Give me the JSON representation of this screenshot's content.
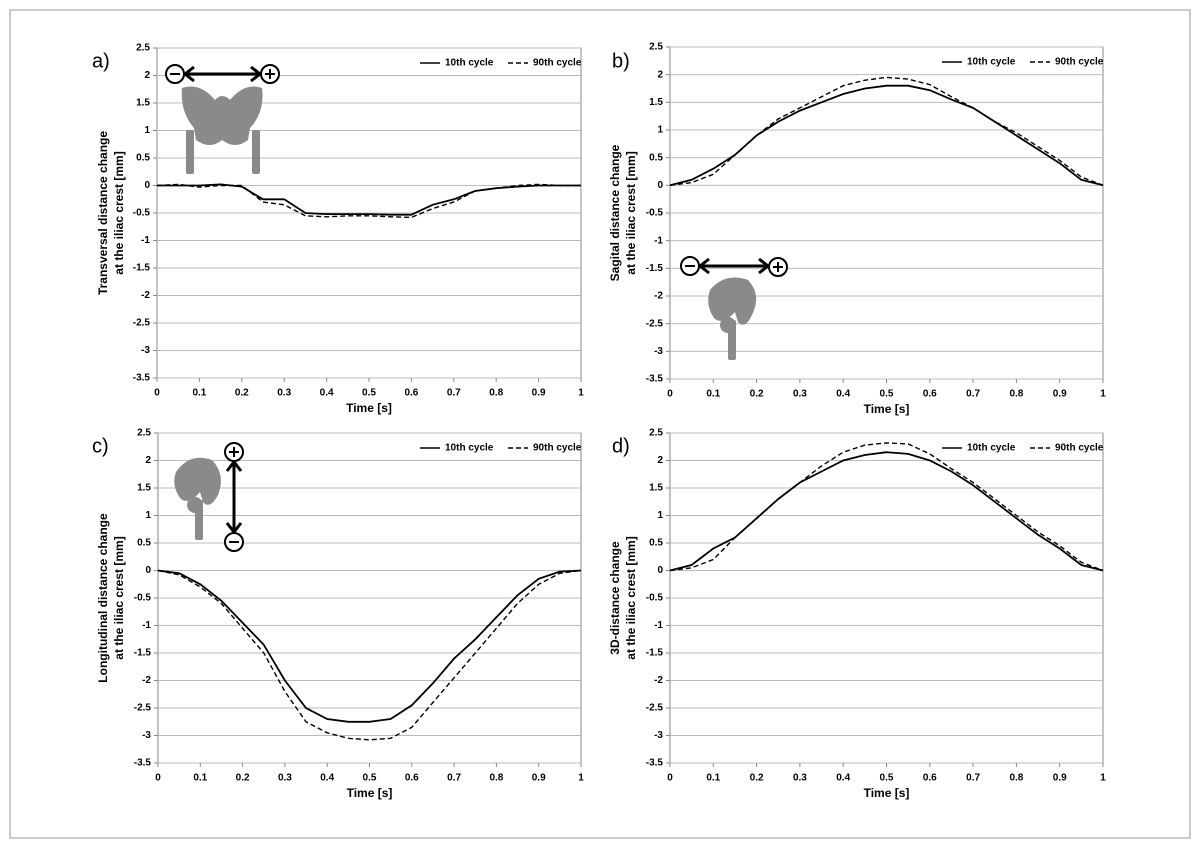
{
  "chart_data": [
    {
      "type": "line",
      "label": "a)",
      "xlabel": "Time [s]",
      "ylabel": [
        "Transversal distance change",
        "at the iliac crest [mm]"
      ],
      "x": [
        0,
        0.05,
        0.1,
        0.15,
        0.2,
        0.25,
        0.3,
        0.35,
        0.4,
        0.45,
        0.5,
        0.55,
        0.6,
        0.65,
        0.7,
        0.75,
        0.8,
        0.85,
        0.9,
        0.95,
        1
      ],
      "series": [
        {
          "name": "10th cycle",
          "color": "#000000",
          "dash": "solid",
          "values": [
            0,
            0,
            0,
            0.02,
            -0.02,
            -0.25,
            -0.25,
            -0.5,
            -0.52,
            -0.52,
            -0.52,
            -0.53,
            -0.53,
            -0.35,
            -0.25,
            -0.1,
            -0.05,
            -0.02,
            0,
            0,
            0
          ]
        },
        {
          "name": "90th cycle",
          "color": "#000000",
          "dash": "dashed",
          "values": [
            0,
            0.02,
            -0.03,
            0,
            0,
            -0.3,
            -0.35,
            -0.55,
            -0.57,
            -0.55,
            -0.55,
            -0.57,
            -0.58,
            -0.42,
            -0.3,
            -0.1,
            -0.05,
            0,
            0.02,
            0,
            0
          ]
        }
      ],
      "xlim": [
        0,
        1
      ],
      "xticks": [
        0,
        0.1,
        0.2,
        0.3,
        0.4,
        0.5,
        0.6,
        0.7,
        0.8,
        0.9,
        1
      ],
      "ylim": [
        -3.5,
        2.5
      ],
      "yticks": [
        -3.5,
        -3,
        -2.5,
        -2,
        -1.5,
        -1,
        -0.5,
        0,
        0.5,
        1,
        1.5,
        2,
        2.5
      ],
      "grid": true,
      "legend": "top-right"
    },
    {
      "type": "line",
      "label": "b)",
      "xlabel": "Time [s]",
      "ylabel": [
        "Sagital distance change",
        "at the iliac crest  [mm]"
      ],
      "x": [
        0,
        0.05,
        0.1,
        0.15,
        0.2,
        0.25,
        0.3,
        0.35,
        0.4,
        0.45,
        0.5,
        0.55,
        0.6,
        0.65,
        0.7,
        0.75,
        0.8,
        0.85,
        0.9,
        0.95,
        1
      ],
      "series": [
        {
          "name": "10th cycle",
          "color": "#000000",
          "dash": "solid",
          "values": [
            0,
            0.1,
            0.3,
            0.55,
            0.9,
            1.15,
            1.35,
            1.5,
            1.65,
            1.75,
            1.8,
            1.8,
            1.72,
            1.55,
            1.4,
            1.15,
            0.9,
            0.65,
            0.4,
            0.1,
            0
          ]
        },
        {
          "name": "90th cycle",
          "color": "#000000",
          "dash": "dashed",
          "values": [
            0,
            0.05,
            0.2,
            0.55,
            0.9,
            1.2,
            1.4,
            1.6,
            1.8,
            1.9,
            1.95,
            1.92,
            1.82,
            1.6,
            1.4,
            1.15,
            0.95,
            0.7,
            0.45,
            0.15,
            0
          ]
        }
      ],
      "xlim": [
        0,
        1
      ],
      "xticks": [
        0,
        0.1,
        0.2,
        0.3,
        0.4,
        0.5,
        0.6,
        0.7,
        0.8,
        0.9,
        1
      ],
      "ylim": [
        -3.5,
        2.5
      ],
      "yticks": [
        -3.5,
        -3,
        -2.5,
        -2,
        -1.5,
        -1,
        -0.5,
        0,
        0.5,
        1,
        1.5,
        2,
        2.5
      ],
      "grid": true,
      "legend": "top-right"
    },
    {
      "type": "line",
      "label": "c)",
      "xlabel": "Time [s]",
      "ylabel": [
        "Longitudinal distance change",
        "at the iliac crest [mm]"
      ],
      "x": [
        0,
        0.05,
        0.1,
        0.15,
        0.2,
        0.25,
        0.3,
        0.35,
        0.4,
        0.45,
        0.5,
        0.55,
        0.6,
        0.65,
        0.7,
        0.75,
        0.8,
        0.85,
        0.9,
        0.95,
        1
      ],
      "series": [
        {
          "name": "10th cycle",
          "color": "#000000",
          "dash": "solid",
          "values": [
            0,
            -0.05,
            -0.25,
            -0.55,
            -0.95,
            -1.35,
            -2.0,
            -2.5,
            -2.7,
            -2.75,
            -2.75,
            -2.7,
            -2.45,
            -2.05,
            -1.6,
            -1.25,
            -0.85,
            -0.45,
            -0.15,
            -0.02,
            0
          ]
        },
        {
          "name": "90th cycle",
          "color": "#000000",
          "dash": "dashed",
          "values": [
            0,
            -0.08,
            -0.3,
            -0.6,
            -1.05,
            -1.5,
            -2.2,
            -2.75,
            -2.95,
            -3.05,
            -3.08,
            -3.05,
            -2.85,
            -2.4,
            -1.95,
            -1.5,
            -1.05,
            -0.6,
            -0.25,
            -0.05,
            0
          ]
        }
      ],
      "xlim": [
        0,
        1
      ],
      "xticks": [
        0,
        0.1,
        0.2,
        0.3,
        0.4,
        0.5,
        0.6,
        0.7,
        0.8,
        0.9,
        1
      ],
      "ylim": [
        -3.5,
        2.5
      ],
      "yticks": [
        -3.5,
        -3,
        -2.5,
        -2,
        -1.5,
        -1,
        -0.5,
        0,
        0.5,
        1,
        1.5,
        2,
        2.5
      ],
      "grid": true,
      "legend": "top-right"
    },
    {
      "type": "line",
      "label": "d)",
      "xlabel": "Time [s]",
      "ylabel": [
        "3D-distance change",
        "at the iliac crest [mm]"
      ],
      "x": [
        0,
        0.05,
        0.1,
        0.15,
        0.2,
        0.25,
        0.3,
        0.35,
        0.4,
        0.45,
        0.5,
        0.55,
        0.6,
        0.65,
        0.7,
        0.75,
        0.8,
        0.85,
        0.9,
        0.95,
        1
      ],
      "series": [
        {
          "name": "10th cycle",
          "color": "#000000",
          "dash": "solid",
          "values": [
            0,
            0.1,
            0.4,
            0.6,
            0.95,
            1.3,
            1.6,
            1.8,
            2.0,
            2.1,
            2.15,
            2.12,
            2.0,
            1.8,
            1.55,
            1.25,
            0.95,
            0.65,
            0.4,
            0.1,
            0
          ]
        },
        {
          "name": "90th cycle",
          "color": "#000000",
          "dash": "dashed",
          "values": [
            0,
            0.05,
            0.2,
            0.6,
            0.95,
            1.3,
            1.6,
            1.9,
            2.15,
            2.28,
            2.32,
            2.3,
            2.12,
            1.85,
            1.6,
            1.3,
            1.0,
            0.7,
            0.45,
            0.15,
            0
          ]
        }
      ],
      "xlim": [
        0,
        1
      ],
      "xticks": [
        0,
        0.1,
        0.2,
        0.3,
        0.4,
        0.5,
        0.6,
        0.7,
        0.8,
        0.9,
        1
      ],
      "ylim": [
        -3.5,
        2.5
      ],
      "yticks": [
        -3.5,
        -3,
        -2.5,
        -2,
        -1.5,
        -1,
        -0.5,
        0,
        0.5,
        1,
        1.5,
        2,
        2.5
      ],
      "grid": true,
      "legend": "top-right"
    }
  ]
}
